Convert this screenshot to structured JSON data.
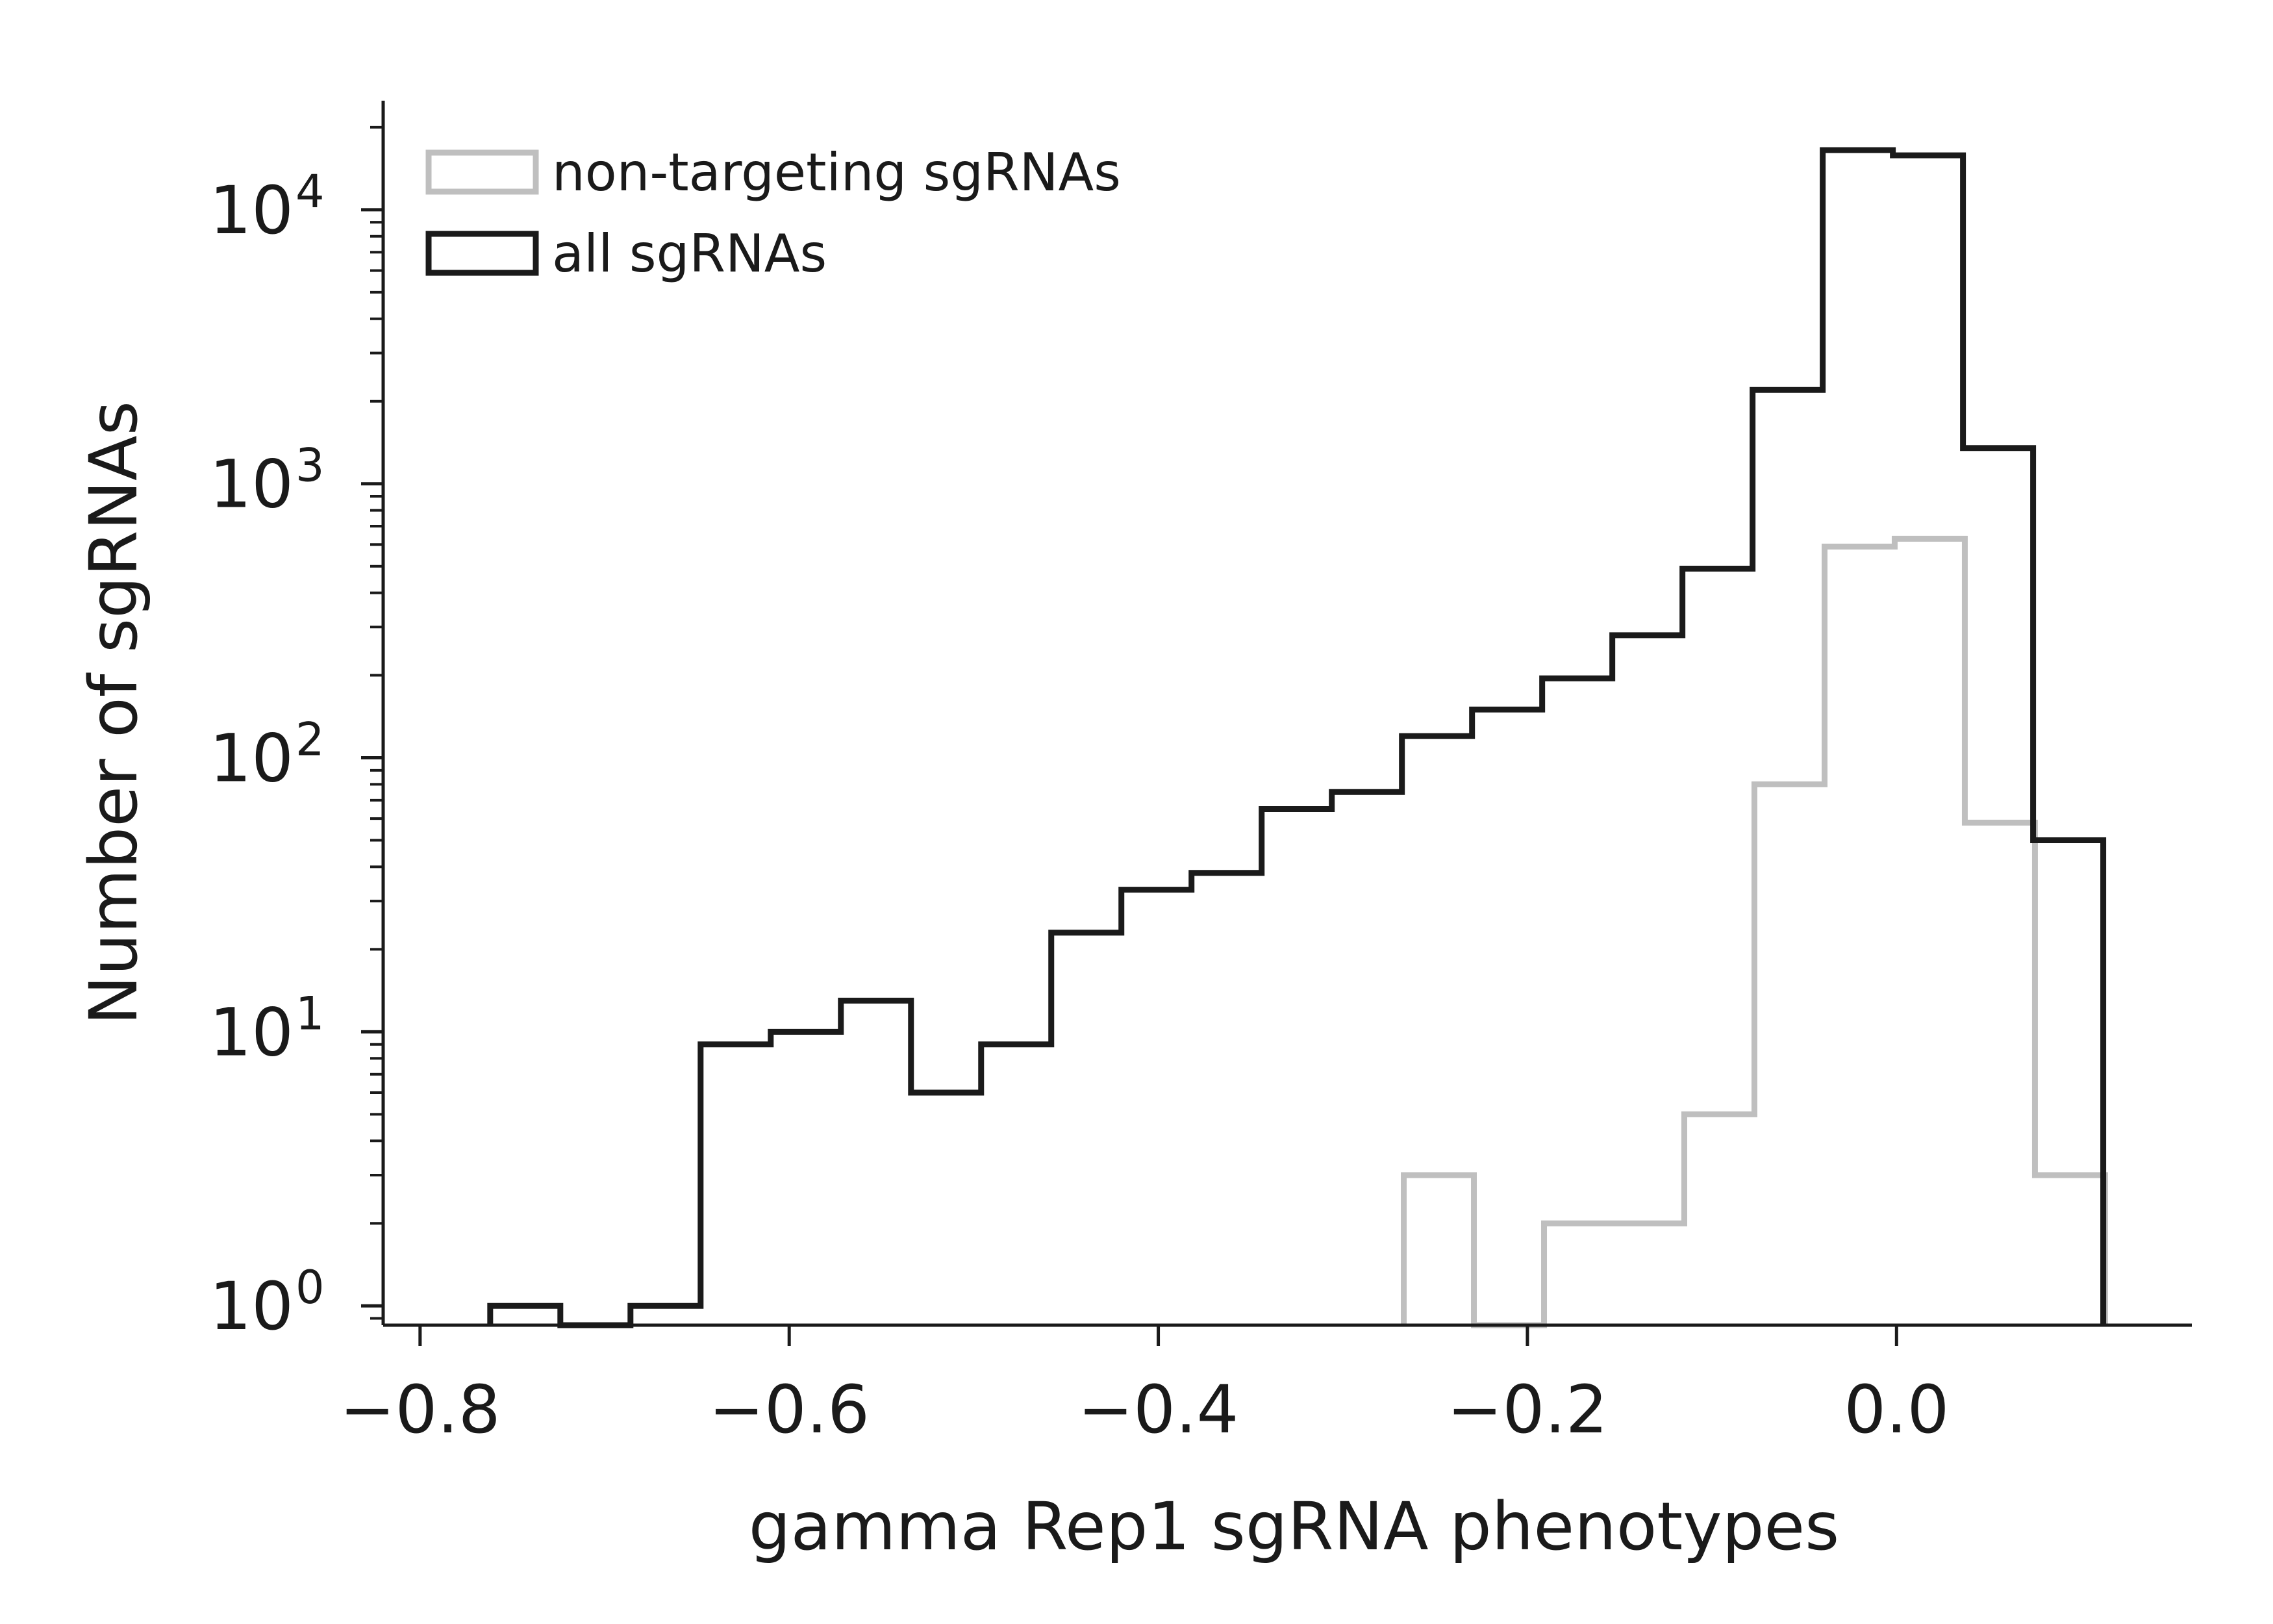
{
  "chart_data": {
    "type": "histogram",
    "scale": {
      "y": "log"
    },
    "xlim": [
      -0.82,
      0.16
    ],
    "ylim": [
      0.85,
      25000
    ],
    "xlabel": "gamma Rep1 sgRNA phenotypes",
    "ylabel": "Number of sgRNAs",
    "xticks": [
      {
        "value": -0.8,
        "label": "−0.8"
      },
      {
        "value": -0.6,
        "label": "−0.6"
      },
      {
        "value": -0.4,
        "label": "−0.4"
      },
      {
        "value": -0.2,
        "label": "−0.2"
      },
      {
        "value": 0.0,
        "label": "0.0"
      }
    ],
    "yticks": [
      {
        "value": 1,
        "base": "10",
        "exp": "0"
      },
      {
        "value": 10,
        "base": "10",
        "exp": "1"
      },
      {
        "value": 100,
        "base": "10",
        "exp": "2"
      },
      {
        "value": 1000,
        "base": "10",
        "exp": "3"
      },
      {
        "value": 10000,
        "base": "10",
        "exp": "4"
      }
    ],
    "legend": {
      "placement": "top-left"
    },
    "series": [
      {
        "name": "non-targeting sgRNAs",
        "color": "#bfbfbf",
        "bins": [
          {
            "x0": -0.267,
            "x1": -0.229,
            "count": 3
          },
          {
            "x0": -0.229,
            "x1": -0.191,
            "count": 0
          },
          {
            "x0": -0.191,
            "x1": -0.153,
            "count": 2
          },
          {
            "x0": -0.153,
            "x1": -0.115,
            "count": 2
          },
          {
            "x0": -0.115,
            "x1": -0.077,
            "count": 5
          },
          {
            "x0": -0.077,
            "x1": -0.039,
            "count": 80
          },
          {
            "x0": -0.039,
            "x1": -0.001,
            "count": 590
          },
          {
            "x0": -0.001,
            "x1": 0.037,
            "count": 630
          },
          {
            "x0": 0.037,
            "x1": 0.075,
            "count": 58
          },
          {
            "x0": 0.075,
            "x1": 0.113,
            "count": 3
          }
        ]
      },
      {
        "name": "all sgRNAs",
        "color": "#1a1a1a",
        "bins": [
          {
            "x0": -0.762,
            "x1": -0.724,
            "count": 1
          },
          {
            "x0": -0.724,
            "x1": -0.686,
            "count": 0
          },
          {
            "x0": -0.686,
            "x1": -0.648,
            "count": 1
          },
          {
            "x0": -0.648,
            "x1": -0.61,
            "count": 9
          },
          {
            "x0": -0.61,
            "x1": -0.572,
            "count": 10
          },
          {
            "x0": -0.572,
            "x1": -0.534,
            "count": 13
          },
          {
            "x0": -0.534,
            "x1": -0.496,
            "count": 6
          },
          {
            "x0": -0.496,
            "x1": -0.458,
            "count": 9
          },
          {
            "x0": -0.458,
            "x1": -0.42,
            "count": 23
          },
          {
            "x0": -0.42,
            "x1": -0.382,
            "count": 33
          },
          {
            "x0": -0.382,
            "x1": -0.344,
            "count": 38
          },
          {
            "x0": -0.344,
            "x1": -0.306,
            "count": 65
          },
          {
            "x0": -0.306,
            "x1": -0.268,
            "count": 75
          },
          {
            "x0": -0.268,
            "x1": -0.23,
            "count": 120
          },
          {
            "x0": -0.23,
            "x1": -0.192,
            "count": 150
          },
          {
            "x0": -0.192,
            "x1": -0.154,
            "count": 195
          },
          {
            "x0": -0.154,
            "x1": -0.116,
            "count": 280
          },
          {
            "x0": -0.116,
            "x1": -0.078,
            "count": 490
          },
          {
            "x0": -0.078,
            "x1": -0.04,
            "count": 2200
          },
          {
            "x0": -0.04,
            "x1": -0.002,
            "count": 16500
          },
          {
            "x0": -0.002,
            "x1": 0.036,
            "count": 15800
          },
          {
            "x0": 0.036,
            "x1": 0.074,
            "count": 1350
          },
          {
            "x0": 0.074,
            "x1": 0.112,
            "count": 50
          }
        ]
      }
    ]
  }
}
